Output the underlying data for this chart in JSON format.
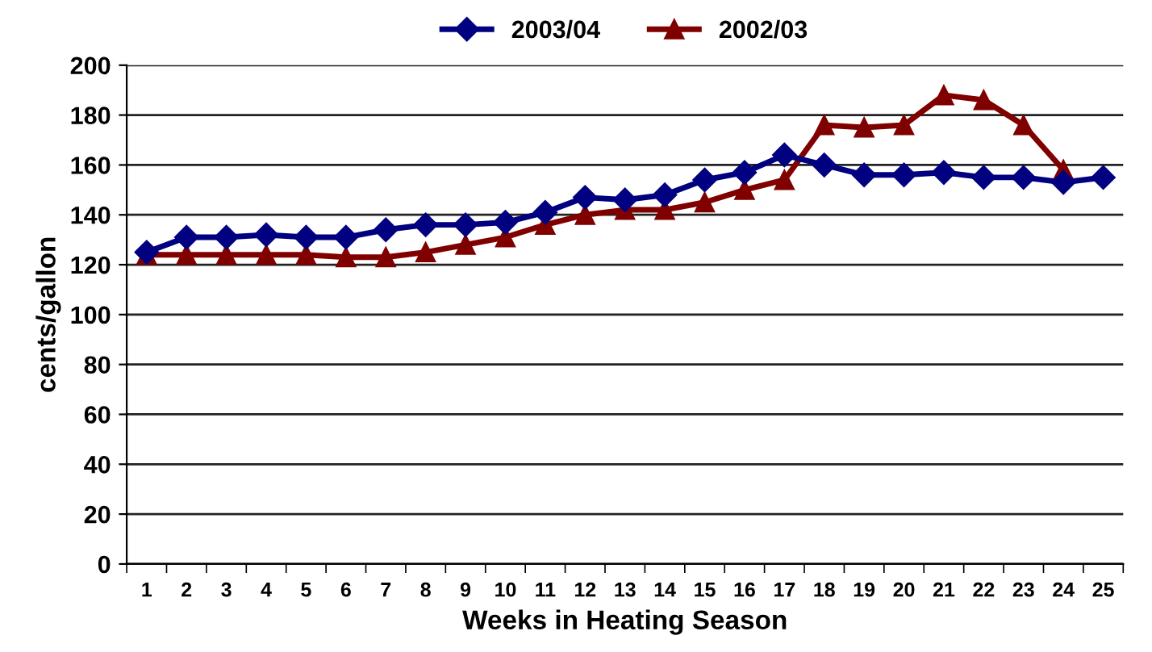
{
  "chart_data": {
    "type": "line",
    "xlabel": "Weeks in Heating Season",
    "ylabel": "cents/gallon",
    "categories": [
      "1",
      "2",
      "3",
      "4",
      "5",
      "6",
      "7",
      "8",
      "9",
      "10",
      "11",
      "12",
      "13",
      "14",
      "15",
      "16",
      "17",
      "18",
      "19",
      "20",
      "21",
      "22",
      "23",
      "24",
      "25"
    ],
    "series": [
      {
        "name": "2003/04",
        "color": "#000080",
        "marker": "diamond",
        "values": [
          125,
          131,
          131,
          132,
          131,
          131,
          134,
          136,
          136,
          137,
          141,
          147,
          146,
          148,
          154,
          157,
          164,
          160,
          156,
          156,
          157,
          155,
          155,
          153,
          155
        ]
      },
      {
        "name": "2002/03",
        "color": "#800000",
        "marker": "triangle",
        "values": [
          124,
          124,
          124,
          124,
          124,
          123,
          123,
          125,
          128,
          131,
          136,
          140,
          142,
          142,
          145,
          150,
          154,
          176,
          175,
          176,
          188,
          186,
          176,
          158,
          null
        ]
      }
    ],
    "ylim": [
      0,
      200
    ],
    "yticks": [
      0,
      20,
      40,
      60,
      80,
      100,
      120,
      140,
      160,
      180,
      200
    ],
    "grid": "y",
    "legend": "top",
    "line_style": "solid"
  }
}
